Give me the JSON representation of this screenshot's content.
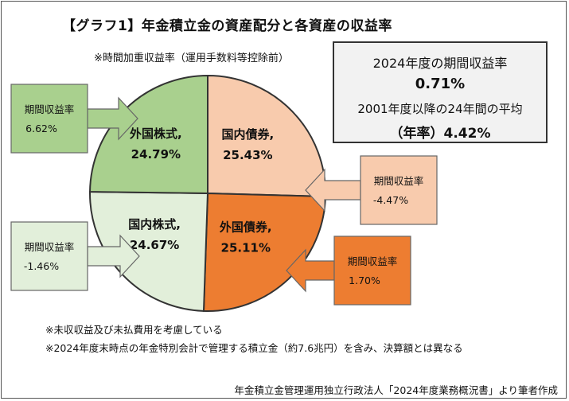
{
  "title": "【グラフ1】年金積立金の資産配分と各資産の収益率",
  "subtitle": "※時間加重収益率（運用手数料等控除前）",
  "summary": {
    "line1": "2024年度の期間収益率",
    "line2": "0.71%",
    "line3": "2001年度以降の24年間の平均",
    "line4": "（年率）4.42%"
  },
  "notes": [
    "※未収収益及び未払費用を考慮している",
    "※2024年度末時点の年金特別会計で管理する積立金（約7.6兆円）を含み、決算額とは異なる"
  ],
  "source": "年金積立金管理運用独立行政法人「2024年度業務概況書」より筆者作成",
  "chart_data": {
    "type": "pie",
    "title": "【グラフ1】年金積立金の資産配分と各資産の収益率",
    "slices": [
      {
        "label": "外国株式,",
        "value": 24.79,
        "value_text": "24.79%",
        "color": "#a9d08e",
        "return_label": "期間収益率",
        "return_text": "6.62%",
        "return_color": "#a9d08e"
      },
      {
        "label": "国内債券,",
        "value": 25.43,
        "value_text": "25.43%",
        "color": "#f8cbad",
        "return_label": "期間収益率",
        "return_text": "-4.47%",
        "return_color": "#f8cbad"
      },
      {
        "label": "外国債券,",
        "value": 25.11,
        "value_text": "25.11%",
        "color": "#ed7d31",
        "return_label": "期間収益率",
        "return_text": "1.70%",
        "return_color": "#ed7d31"
      },
      {
        "label": "国内株式,",
        "value": 24.67,
        "value_text": "24.67%",
        "color": "#e2efda",
        "return_label": "期間収益率",
        "return_text": "-1.46%",
        "return_color": "#e2efda"
      }
    ],
    "unit": "%"
  }
}
